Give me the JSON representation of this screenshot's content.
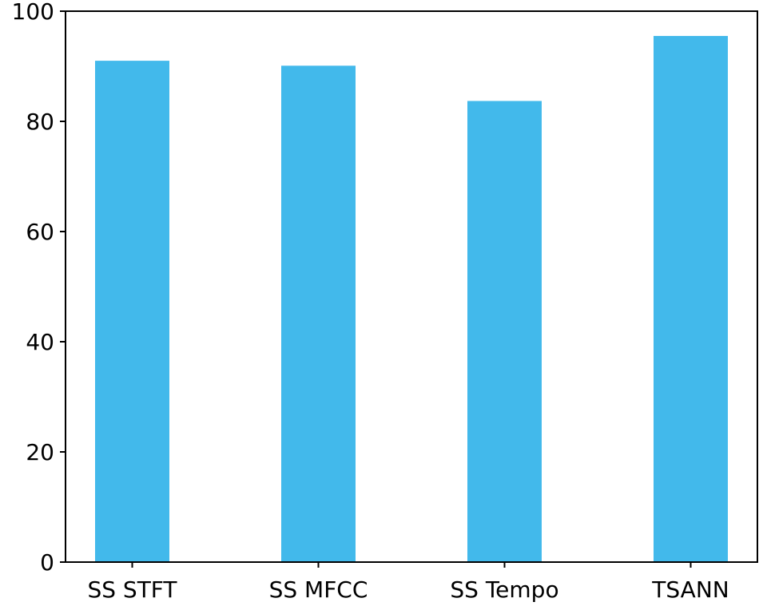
{
  "chart_data": {
    "type": "bar",
    "title": "",
    "xlabel": "",
    "ylabel": "",
    "categories": [
      "SS STFT",
      "SS MFCC",
      "SS Tempo",
      "TSANN"
    ],
    "values": [
      91,
      90.1,
      83.7,
      95.5
    ],
    "ylim": [
      0,
      100
    ],
    "yticks": [
      "0",
      "20",
      "40",
      "60",
      "80",
      "100"
    ],
    "bar_color": "#42b9eb",
    "grid": false,
    "legend": "none"
  }
}
